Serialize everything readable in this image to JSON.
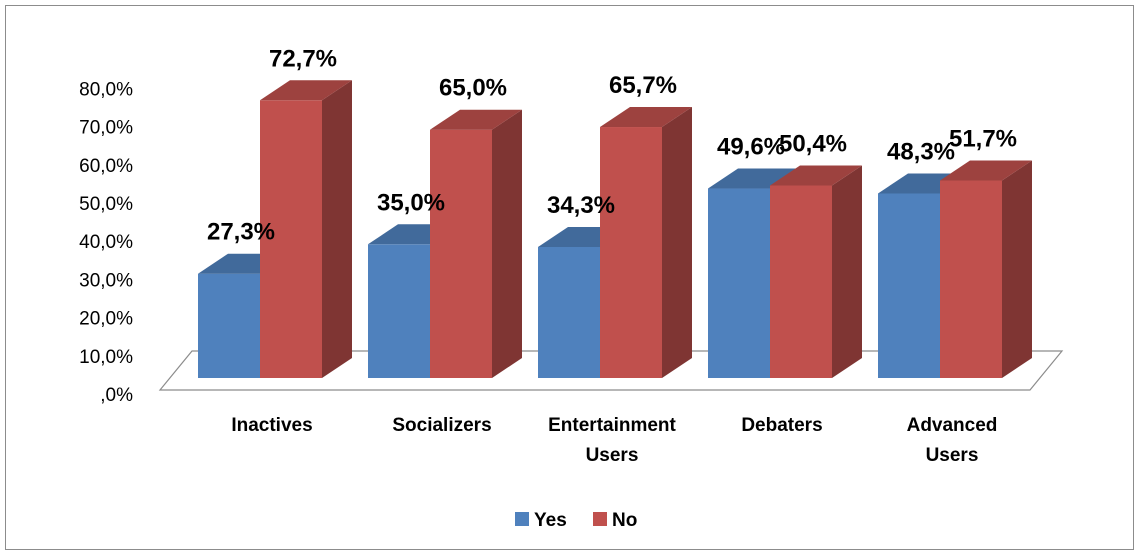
{
  "chart_data": {
    "type": "bar",
    "style": "3d-clustered-column",
    "categories": [
      [
        "Inactives"
      ],
      [
        "Socializers"
      ],
      [
        "Entertainment",
        "Users"
      ],
      [
        "Debaters"
      ],
      [
        "Advanced",
        "Users"
      ]
    ],
    "series": [
      {
        "name": "Yes",
        "values": [
          27.3,
          35.0,
          34.3,
          49.6,
          48.3
        ],
        "labels": [
          "27,3%",
          "35,0%",
          "34,3%",
          "49,6%",
          "48,3%"
        ],
        "color": "#4F81BD"
      },
      {
        "name": "No",
        "values": [
          72.7,
          65.0,
          65.7,
          50.4,
          51.7
        ],
        "labels": [
          "72,7%",
          "65,0%",
          "65,7%",
          "50,4%",
          "51,7%"
        ],
        "color": "#C0504D"
      }
    ],
    "ylim": [
      0,
      80
    ],
    "yticks": [
      ",0%",
      "10,0%",
      "20,0%",
      "30,0%",
      "40,0%",
      "50,0%",
      "60,0%",
      "70,0%",
      "80,0%"
    ],
    "grid": false,
    "legend_position": "bottom"
  }
}
